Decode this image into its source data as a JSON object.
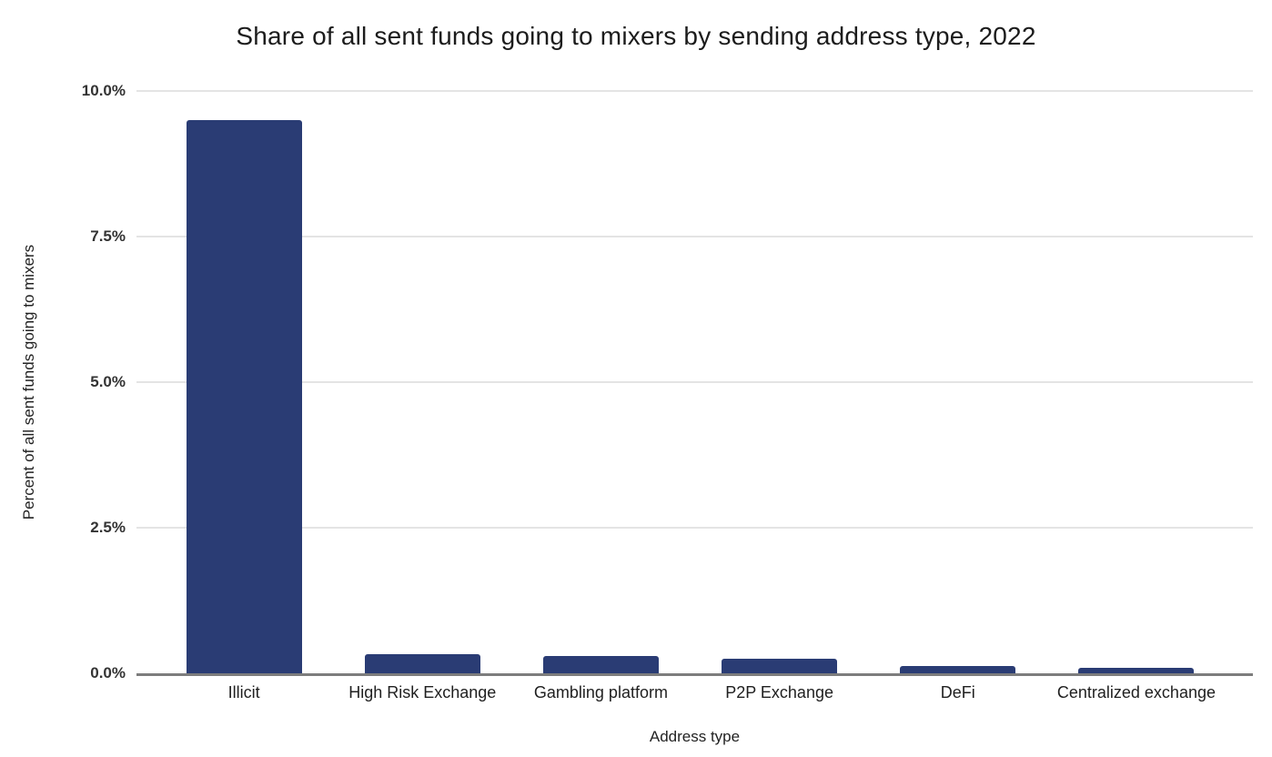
{
  "title": "Share of all sent funds going to mixers by sending address type, 2022",
  "colors": {
    "bar": "#2a3c74",
    "gridline": "#e4e4e4",
    "baseline": "#7d7d7d",
    "title_text": "#1c1c1c",
    "tick_text": "#333333",
    "background": "#ffffff"
  },
  "chart_data": {
    "type": "bar",
    "title": "Share of all sent funds going to mixers by sending address type, 2022",
    "xlabel": "Address type",
    "ylabel": "Percent of all sent funds going to mixers",
    "categories": [
      "Illicit",
      "High Risk Exchange",
      "Gambling platform",
      "P2P Exchange",
      "DeFi",
      "Centralized exchange"
    ],
    "values": [
      9.5,
      0.33,
      0.29,
      0.25,
      0.12,
      0.1
    ],
    "ylim": [
      0,
      10
    ],
    "yticks": [
      {
        "value": 0,
        "label": "0.0%"
      },
      {
        "value": 2.5,
        "label": "2.5%"
      },
      {
        "value": 5,
        "label": "5.0%"
      },
      {
        "value": 7.5,
        "label": "7.5%"
      },
      {
        "value": 10,
        "label": "10.0%"
      }
    ],
    "grid": "horizontal",
    "legend": "none"
  }
}
